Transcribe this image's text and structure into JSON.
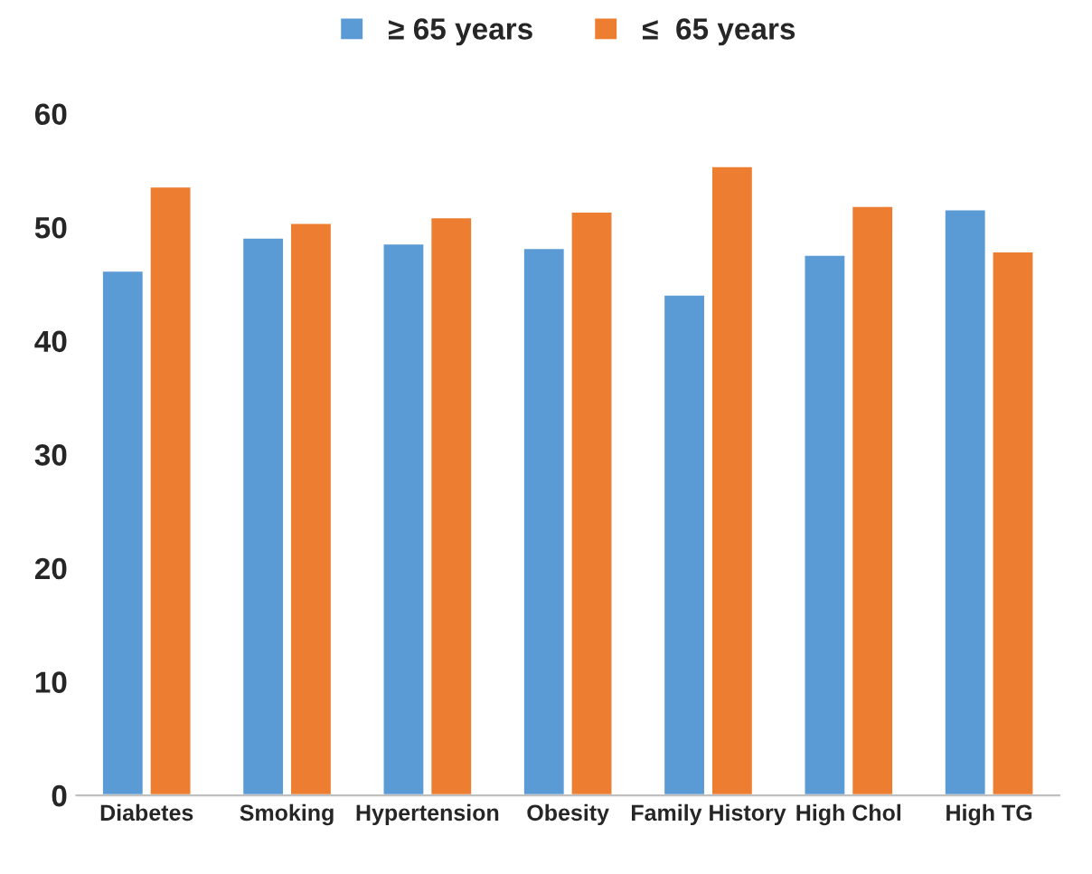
{
  "chart_data": {
    "type": "bar",
    "categories": [
      "Diabetes",
      "Smoking",
      "Hypertension",
      "Obesity",
      "Family History",
      "High Chol",
      "High TG"
    ],
    "series": [
      {
        "name": "≥ 65 years",
        "color": "#5b9bd5",
        "values": [
          46.2,
          49.1,
          48.6,
          48.2,
          44.1,
          47.6,
          51.6
        ]
      },
      {
        "name": "≤  65 years",
        "color": "#ed7d31",
        "values": [
          53.6,
          50.4,
          50.9,
          51.4,
          55.4,
          51.9,
          47.9
        ]
      }
    ],
    "ylim": [
      0,
      60
    ],
    "yticks": [
      0,
      10,
      20,
      30,
      40,
      50,
      60
    ],
    "grid": false,
    "legend": "top"
  }
}
